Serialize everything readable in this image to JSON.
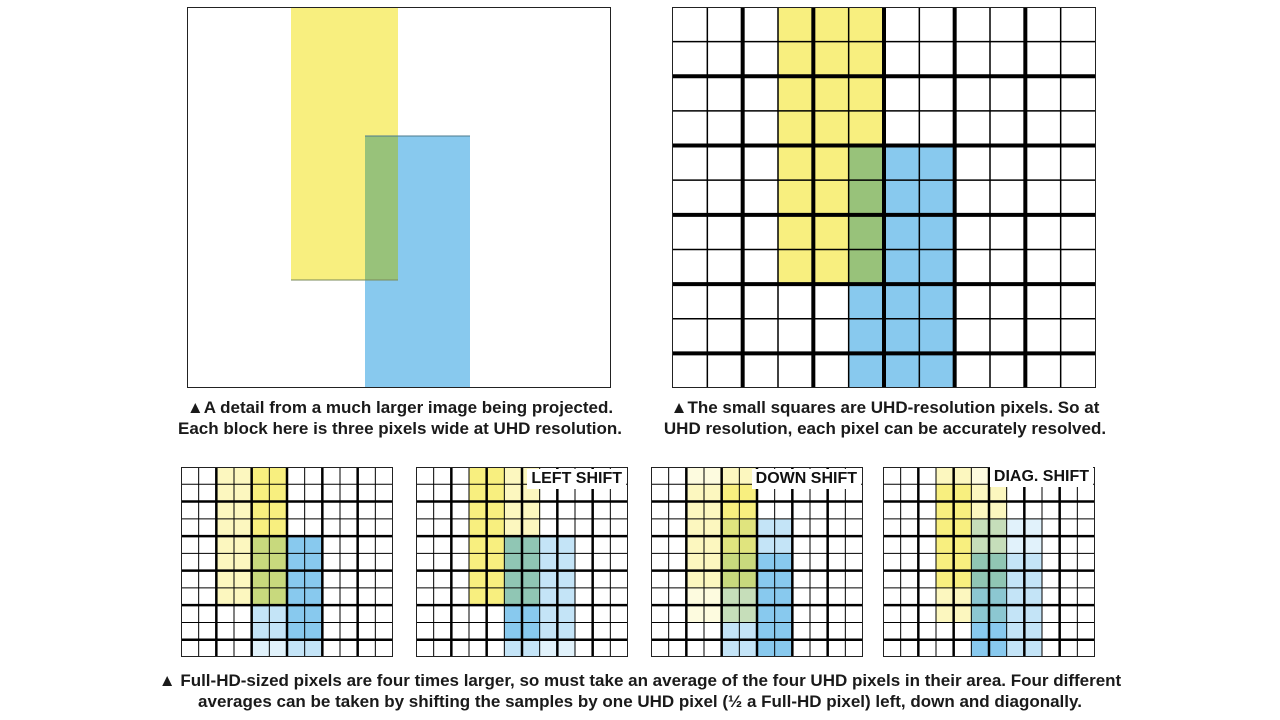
{
  "captions": {
    "top_left": {
      "line1": "▲A detail from a much larger image being projected.",
      "line2": "Each block here is three pixels wide at UHD resolution."
    },
    "top_right": {
      "line1": "▲The small squares are UHD-resolution pixels. So at",
      "line2": "UHD resolution, each pixel can be accurately resolved."
    },
    "bottom": {
      "line1": "▲ Full-HD-sized pixels are four times larger, so must take an average of the four UHD pixels in their area. Four different",
      "line2": "averages can be taken by shifting the samples by one UHD pixel (½ a Full-HD pixel) left, down and diagonally."
    }
  },
  "shift_labels": {
    "left": "LEFT SHIFT",
    "down": "DOWN SHIFT",
    "diag": "DIAG. SHIFT"
  },
  "colors": {
    "yellow": "#f8ef7f",
    "blue": "#88c9ee",
    "overlap": "#98c27a",
    "grid": "#000000",
    "border": "#222222"
  }
}
